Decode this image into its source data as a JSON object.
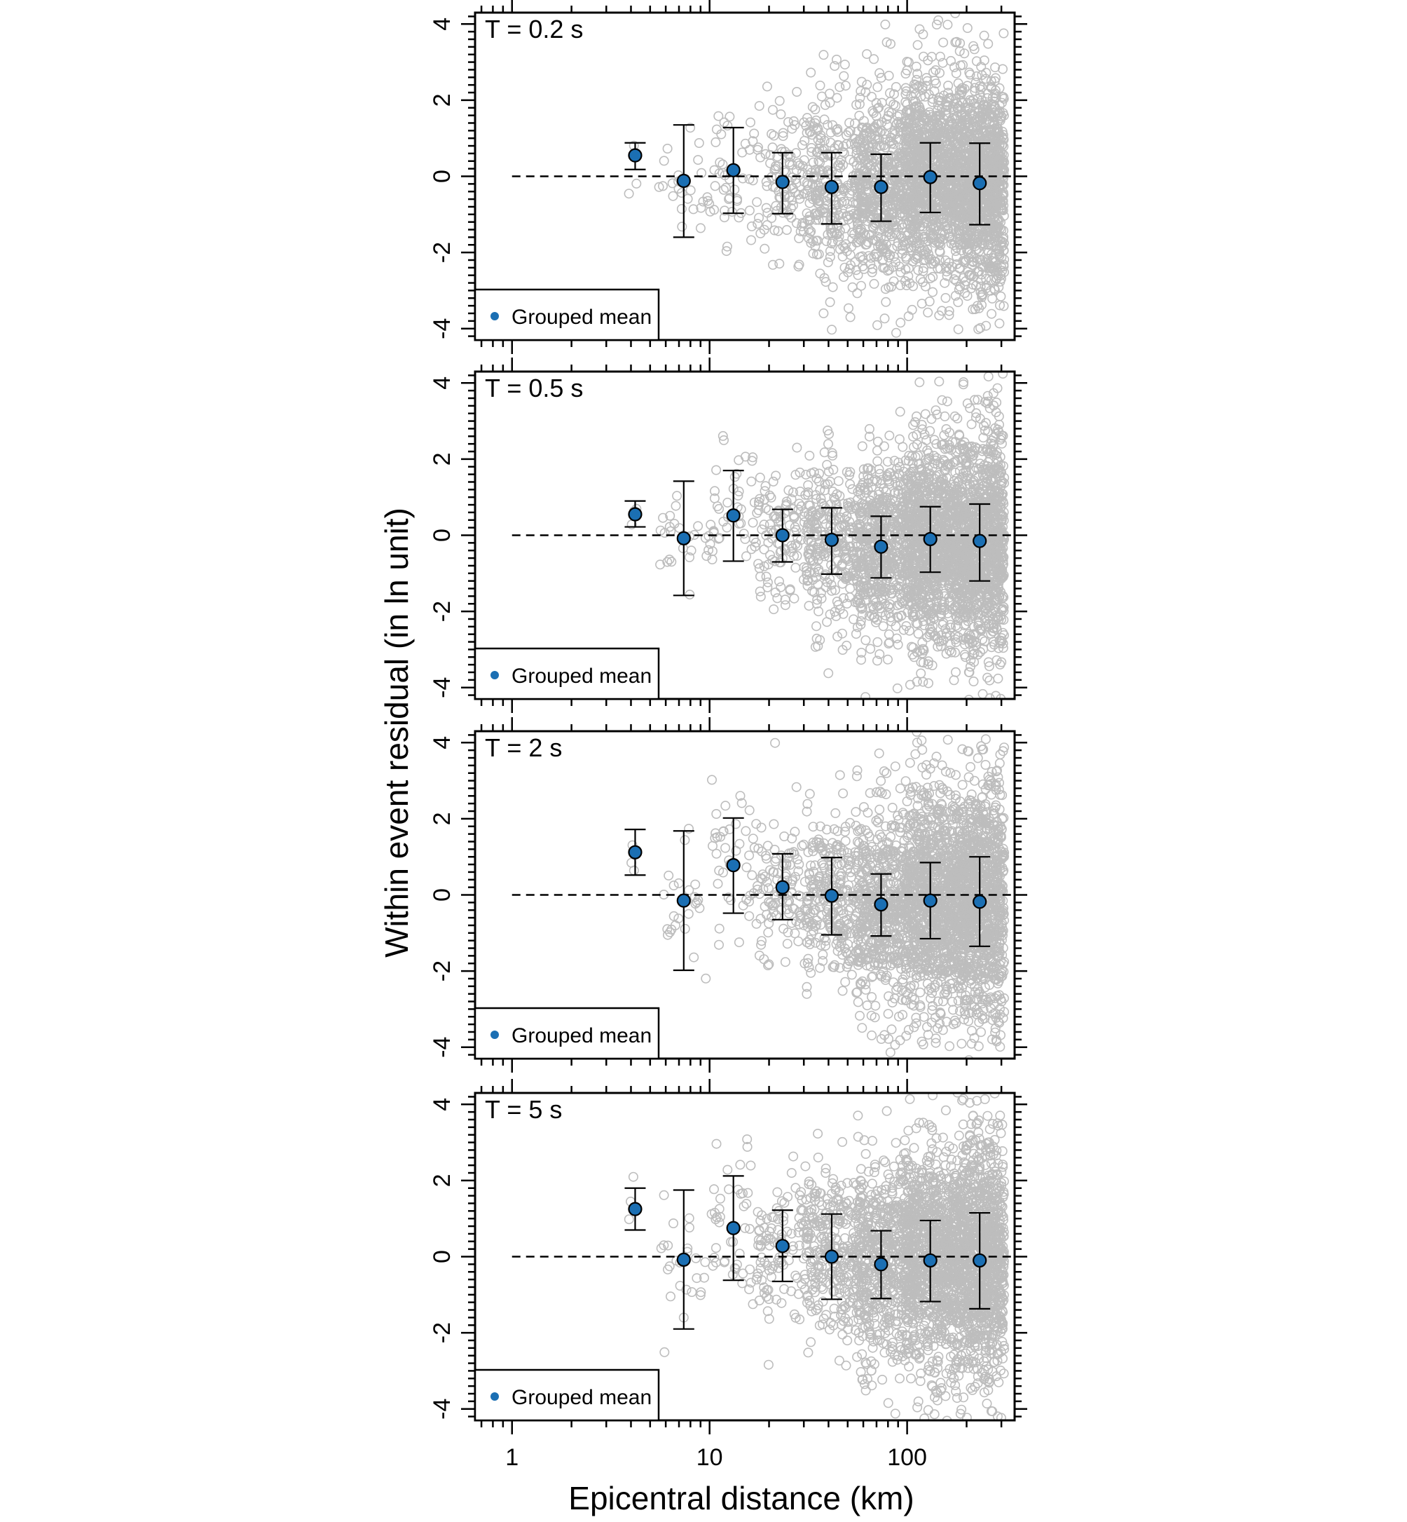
{
  "figure": {
    "ylabel": "Within event residual (in ln unit)",
    "xlabel": "Epicentral distance (km)",
    "x_tick_labels": [
      "1",
      "10",
      "100"
    ],
    "y_tick_labels": [
      "-4",
      "-2",
      "0",
      "2",
      "4"
    ],
    "legend_label": "Grouped mean",
    "colors": {
      "mean_marker": "#1b6fb3",
      "scatter": "#bdbdbd",
      "lines": "#000000"
    }
  },
  "chart_data": [
    {
      "type": "scatter",
      "title": "T = 0.2 s",
      "x_scale": "log",
      "xlim": [
        0.65,
        350
      ],
      "ylim": [
        -4.3,
        4.3
      ],
      "grouped_mean": {
        "x": [
          4.2,
          7.4,
          13.2,
          23.4,
          41.5,
          73.8,
          131,
          233
        ],
        "mean": [
          0.55,
          -0.12,
          0.16,
          -0.15,
          -0.28,
          -0.28,
          -0.02,
          -0.18
        ],
        "lower": [
          0.18,
          -1.6,
          -0.97,
          -0.98,
          -1.25,
          -1.18,
          -0.95,
          -1.27
        ],
        "upper": [
          0.88,
          1.35,
          1.28,
          0.62,
          0.62,
          0.58,
          0.88,
          0.87
        ]
      },
      "scatter_spread": [
        0.35,
        0.75,
        0.9,
        1.0,
        1.15,
        1.25,
        1.35,
        1.45
      ]
    },
    {
      "type": "scatter",
      "title": "T = 0.5 s",
      "x_scale": "log",
      "xlim": [
        0.65,
        350
      ],
      "ylim": [
        -4.3,
        4.3
      ],
      "grouped_mean": {
        "x": [
          4.2,
          7.4,
          13.2,
          23.4,
          41.5,
          73.8,
          131,
          233
        ],
        "mean": [
          0.55,
          -0.08,
          0.52,
          0.0,
          -0.12,
          -0.3,
          -0.1,
          -0.15
        ],
        "lower": [
          0.22,
          -1.58,
          -0.68,
          -0.7,
          -1.02,
          -1.12,
          -0.97,
          -1.2
        ],
        "upper": [
          0.9,
          1.42,
          1.7,
          0.68,
          0.72,
          0.5,
          0.75,
          0.82
        ]
      },
      "scatter_spread": [
        0.35,
        0.75,
        0.85,
        0.9,
        1.05,
        1.2,
        1.35,
        1.5
      ]
    },
    {
      "type": "scatter",
      "title": "T = 2 s",
      "x_scale": "log",
      "xlim": [
        0.65,
        350
      ],
      "ylim": [
        -4.3,
        4.3
      ],
      "grouped_mean": {
        "x": [
          4.2,
          7.4,
          13.2,
          23.4,
          41.5,
          73.8,
          131,
          233
        ],
        "mean": [
          1.12,
          -0.15,
          0.78,
          0.2,
          -0.02,
          -0.25,
          -0.15,
          -0.18
        ],
        "lower": [
          0.52,
          -1.98,
          -0.48,
          -0.65,
          -1.05,
          -1.08,
          -1.15,
          -1.35
        ],
        "upper": [
          1.72,
          1.68,
          2.02,
          1.08,
          0.98,
          0.55,
          0.85,
          1.0
        ]
      },
      "scatter_spread": [
        0.6,
        0.9,
        1.0,
        0.95,
        1.1,
        1.3,
        1.5,
        1.6
      ]
    },
    {
      "type": "scatter",
      "title": "T = 5 s",
      "x_scale": "log",
      "xlim": [
        0.65,
        350
      ],
      "ylim": [
        -4.3,
        4.3
      ],
      "grouped_mean": {
        "x": [
          4.2,
          7.4,
          13.2,
          23.4,
          41.5,
          73.8,
          131,
          233
        ],
        "mean": [
          1.25,
          -0.08,
          0.75,
          0.28,
          0.0,
          -0.2,
          -0.1,
          -0.1
        ],
        "lower": [
          0.7,
          -1.9,
          -0.62,
          -0.65,
          -1.12,
          -1.1,
          -1.18,
          -1.37
        ],
        "upper": [
          1.8,
          1.75,
          2.12,
          1.22,
          1.12,
          0.68,
          0.95,
          1.15
        ]
      },
      "scatter_spread": [
        0.6,
        0.95,
        1.05,
        1.0,
        1.15,
        1.35,
        1.55,
        1.65
      ]
    }
  ]
}
